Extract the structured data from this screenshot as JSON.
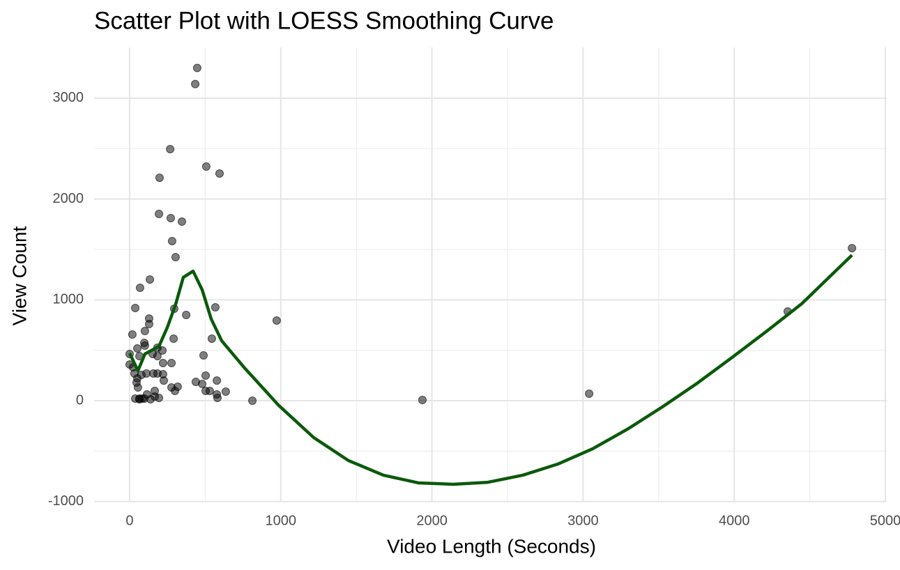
{
  "chart_data": {
    "type": "scatter",
    "title": "Scatter Plot with LOESS Smoothing Curve",
    "x_label": "Video Length (Seconds)",
    "y_label": "View Count",
    "xlim": [
      -235,
      5009
    ],
    "ylim": [
      -1002,
      3504
    ],
    "xticks": [
      0,
      1000,
      2000,
      3000,
      4000,
      5000
    ],
    "yticks": [
      -1000,
      0,
      1000,
      2000,
      3000
    ],
    "grid": true,
    "point_color": "#000000",
    "x": [
      447,
      434,
      268,
      507,
      595,
      198,
      194,
      272,
      346,
      281,
      304,
      134,
      69,
      37,
      295,
      567,
      374,
      973,
      129,
      129,
      18,
      101,
      291,
      544,
      97,
      101,
      184,
      217,
      51,
      0,
      65,
      489,
      152,
      184,
      221,
      277,
      0,
      23,
      32,
      111,
      157,
      184,
      221,
      78,
      51,
      503,
      46,
      226,
      438,
      577,
      480,
      55,
      318,
      277,
      166,
      300,
      503,
      530,
      636,
      115,
      577,
      3040,
      4354,
      4779,
      37,
      65,
      83,
      97,
      138,
      166,
      194,
      581,
      812,
      1937,
      65
    ],
    "y": [
      3300,
      3140,
      2495,
      2322,
      2253,
      2211,
      1852,
      1811,
      1776,
      1583,
      1424,
      1202,
      1120,
      919,
      912,
      926,
      850,
      795,
      815,
      760,
      657,
      691,
      615,
      615,
      574,
      546,
      525,
      498,
      518,
      463,
      442,
      449,
      463,
      442,
      373,
      373,
      359,
      332,
      270,
      270,
      270,
      270,
      263,
      256,
      221,
      249,
      180,
      200,
      187,
      200,
      166,
      131,
      138,
      131,
      97,
      97,
      97,
      97,
      90,
      62,
      62,
      69,
      885,
      1513,
      21,
      21,
      21,
      21,
      14,
      41,
      28,
      28,
      0,
      7,
      14
    ],
    "loess": {
      "color": "#0a5a0a",
      "x": [
        0,
        55,
        101,
        194,
        249,
        304,
        355,
        420,
        480,
        540,
        609,
        756,
        987,
        1218,
        1448,
        1679,
        1910,
        2140,
        2371,
        2601,
        2832,
        3063,
        3293,
        3524,
        3755,
        3985,
        4216,
        4446,
        4779
      ],
      "y": [
        470,
        297,
        463,
        539,
        726,
        954,
        1223,
        1285,
        1099,
        809,
        594,
        332,
        -48,
        -366,
        -594,
        -739,
        -815,
        -829,
        -809,
        -739,
        -629,
        -477,
        -283,
        -62,
        173,
        428,
        691,
        961,
        1444
      ]
    }
  }
}
